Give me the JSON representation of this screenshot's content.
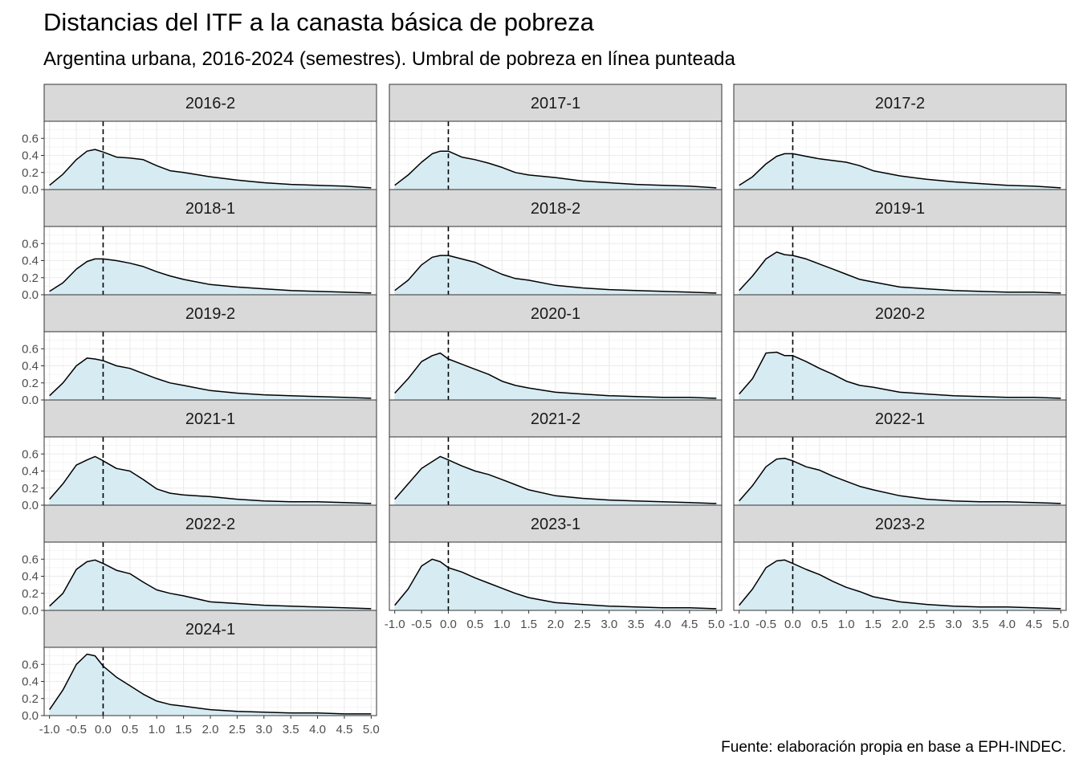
{
  "chart_data": {
    "type": "area",
    "title": "Distancias del ITF a la canasta básica de pobreza",
    "subtitle": "Argentina urbana, 2016-2024 (semestres). Umbral de pobreza en línea punteada",
    "caption": "Fuente: elaboración propia en base a EPH-INDEC.",
    "xlabel": "",
    "ylabel": "",
    "xlim": [
      -1.1,
      5.1
    ],
    "ylim": [
      0,
      0.8
    ],
    "x_ticks": [
      "-1.0",
      "-0.5",
      "0.0",
      "0.5",
      "1.0",
      "1.5",
      "2.0",
      "2.5",
      "3.0",
      "3.5",
      "4.0",
      "4.5",
      "5.0"
    ],
    "y_ticks": [
      "0.0",
      "0.2",
      "0.4",
      "0.6"
    ],
    "threshold_x": 0,
    "grid": true,
    "fill_color": "#d6ebf2",
    "line_color": "#000000",
    "strip_color": "#d9d9d9",
    "x": [
      -1.0,
      -0.75,
      -0.5,
      -0.3,
      -0.15,
      0.0,
      0.25,
      0.5,
      0.75,
      1.0,
      1.25,
      1.5,
      2.0,
      2.5,
      3.0,
      3.5,
      4.0,
      4.5,
      5.0
    ],
    "facets": [
      {
        "label": "2016-2",
        "values": [
          0.05,
          0.18,
          0.35,
          0.45,
          0.47,
          0.44,
          0.38,
          0.37,
          0.35,
          0.28,
          0.22,
          0.2,
          0.15,
          0.11,
          0.08,
          0.06,
          0.05,
          0.04,
          0.02
        ]
      },
      {
        "label": "2017-1",
        "values": [
          0.05,
          0.17,
          0.32,
          0.42,
          0.45,
          0.45,
          0.38,
          0.35,
          0.31,
          0.26,
          0.2,
          0.17,
          0.14,
          0.1,
          0.08,
          0.06,
          0.05,
          0.04,
          0.02
        ]
      },
      {
        "label": "2017-2",
        "values": [
          0.05,
          0.15,
          0.3,
          0.39,
          0.42,
          0.42,
          0.39,
          0.36,
          0.34,
          0.32,
          0.28,
          0.22,
          0.16,
          0.12,
          0.09,
          0.07,
          0.05,
          0.04,
          0.02
        ]
      },
      {
        "label": "2018-1",
        "values": [
          0.04,
          0.14,
          0.3,
          0.39,
          0.42,
          0.42,
          0.4,
          0.37,
          0.33,
          0.27,
          0.22,
          0.18,
          0.12,
          0.09,
          0.07,
          0.05,
          0.04,
          0.03,
          0.02
        ]
      },
      {
        "label": "2018-2",
        "values": [
          0.05,
          0.17,
          0.35,
          0.44,
          0.46,
          0.46,
          0.42,
          0.38,
          0.31,
          0.24,
          0.19,
          0.17,
          0.11,
          0.08,
          0.06,
          0.05,
          0.04,
          0.03,
          0.02
        ]
      },
      {
        "label": "2019-1",
        "values": [
          0.05,
          0.22,
          0.42,
          0.5,
          0.47,
          0.46,
          0.42,
          0.36,
          0.3,
          0.24,
          0.18,
          0.15,
          0.09,
          0.07,
          0.05,
          0.04,
          0.03,
          0.03,
          0.02
        ]
      },
      {
        "label": "2019-2",
        "values": [
          0.05,
          0.2,
          0.4,
          0.49,
          0.48,
          0.46,
          0.4,
          0.37,
          0.31,
          0.25,
          0.2,
          0.17,
          0.11,
          0.08,
          0.06,
          0.05,
          0.04,
          0.03,
          0.02
        ]
      },
      {
        "label": "2020-1",
        "values": [
          0.08,
          0.25,
          0.45,
          0.52,
          0.55,
          0.48,
          0.42,
          0.36,
          0.3,
          0.22,
          0.17,
          0.14,
          0.09,
          0.07,
          0.05,
          0.04,
          0.03,
          0.03,
          0.02
        ]
      },
      {
        "label": "2020-2",
        "values": [
          0.07,
          0.25,
          0.55,
          0.56,
          0.52,
          0.52,
          0.45,
          0.37,
          0.3,
          0.22,
          0.17,
          0.15,
          0.09,
          0.07,
          0.05,
          0.04,
          0.03,
          0.03,
          0.02
        ]
      },
      {
        "label": "2021-1",
        "values": [
          0.07,
          0.25,
          0.47,
          0.53,
          0.57,
          0.52,
          0.43,
          0.4,
          0.3,
          0.19,
          0.14,
          0.12,
          0.1,
          0.07,
          0.05,
          0.04,
          0.04,
          0.03,
          0.02
        ]
      },
      {
        "label": "2021-2",
        "values": [
          0.07,
          0.25,
          0.43,
          0.51,
          0.57,
          0.53,
          0.46,
          0.4,
          0.36,
          0.3,
          0.24,
          0.18,
          0.11,
          0.08,
          0.06,
          0.05,
          0.04,
          0.03,
          0.02
        ]
      },
      {
        "label": "2022-1",
        "values": [
          0.05,
          0.23,
          0.45,
          0.54,
          0.55,
          0.52,
          0.45,
          0.41,
          0.34,
          0.28,
          0.22,
          0.18,
          0.11,
          0.07,
          0.05,
          0.04,
          0.04,
          0.03,
          0.02
        ]
      },
      {
        "label": "2022-2",
        "values": [
          0.05,
          0.2,
          0.48,
          0.57,
          0.59,
          0.55,
          0.47,
          0.43,
          0.33,
          0.24,
          0.2,
          0.17,
          0.1,
          0.08,
          0.06,
          0.05,
          0.04,
          0.03,
          0.02
        ]
      },
      {
        "label": "2023-1",
        "values": [
          0.06,
          0.25,
          0.52,
          0.6,
          0.57,
          0.5,
          0.45,
          0.38,
          0.32,
          0.26,
          0.2,
          0.15,
          0.09,
          0.07,
          0.05,
          0.04,
          0.03,
          0.03,
          0.02
        ]
      },
      {
        "label": "2023-2",
        "values": [
          0.06,
          0.25,
          0.5,
          0.58,
          0.59,
          0.55,
          0.48,
          0.42,
          0.34,
          0.27,
          0.22,
          0.16,
          0.1,
          0.07,
          0.05,
          0.04,
          0.04,
          0.03,
          0.02
        ]
      },
      {
        "label": "2024-1",
        "values": [
          0.07,
          0.3,
          0.6,
          0.72,
          0.7,
          0.58,
          0.45,
          0.35,
          0.25,
          0.17,
          0.13,
          0.11,
          0.07,
          0.05,
          0.04,
          0.03,
          0.03,
          0.02,
          0.02
        ]
      }
    ]
  }
}
